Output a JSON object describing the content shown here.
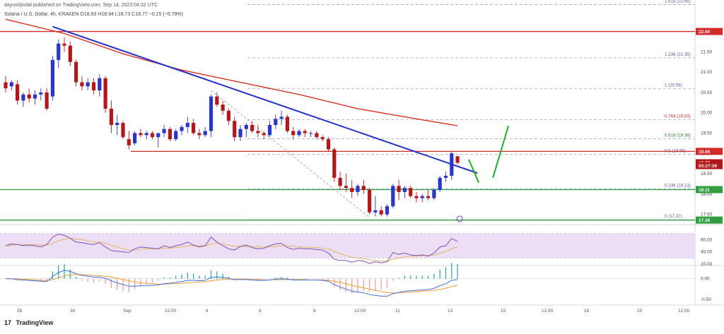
{
  "header": {
    "published_line": "aayushjindal published on TradingView.com, Sep 14, 2023 04:32 UTC",
    "symbol_line": "Solana / U.S. Dollar, 4h, KRAKEN  O18.93  H18.94  L18.73  C18.77  −0.15 (−0.79%)"
  },
  "footer": {
    "brand": "TradingView",
    "logo": "17"
  },
  "colors": {
    "up": "#2b35c8",
    "down": "#b0181c",
    "trendline": "#2230c8",
    "ma": "#d8332a",
    "support": "#2e9e3e",
    "resistance": "#d22a2a",
    "forecast": "#1fb02f",
    "rsi_band": "#ecdff5",
    "rsi_line": "#7e4fb6"
  },
  "chart_data": [
    {
      "type": "candlestick",
      "title": "",
      "xlabel": "",
      "ylabel": "",
      "ylim": [
        17.25,
        22.6
      ],
      "x_ticks": [
        "28",
        "30",
        "Sep",
        "12:00",
        "4",
        "6",
        "8",
        "12:00",
        "11",
        "13",
        "15",
        "12:00",
        "18",
        "20",
        "12:00"
      ],
      "y_ticks": [
        "17.50",
        "18.00",
        "18.50",
        "19.00",
        "19.50",
        "20.00",
        "20.50",
        "21.00",
        "21.50",
        "22.00"
      ],
      "candles": [
        [
          20.75,
          20.9,
          20.5,
          20.6
        ],
        [
          20.65,
          20.8,
          20.55,
          20.75
        ],
        [
          20.7,
          20.8,
          20.2,
          20.3
        ],
        [
          20.3,
          20.5,
          20.15,
          20.45
        ],
        [
          20.45,
          20.6,
          20.25,
          20.35
        ],
        [
          20.35,
          20.55,
          20.2,
          20.45
        ],
        [
          20.45,
          20.6,
          20.3,
          20.5
        ],
        [
          20.5,
          20.6,
          20.05,
          20.1
        ],
        [
          20.4,
          21.4,
          20.3,
          21.3
        ],
        [
          21.3,
          21.8,
          21.1,
          21.7
        ],
        [
          21.7,
          21.85,
          21.5,
          21.65
        ],
        [
          21.65,
          21.75,
          21.15,
          21.25
        ],
        [
          21.25,
          21.3,
          20.65,
          20.75
        ],
        [
          20.75,
          20.9,
          20.55,
          20.65
        ],
        [
          20.65,
          20.85,
          20.55,
          20.75
        ],
        [
          20.75,
          20.85,
          20.45,
          20.55
        ],
        [
          20.55,
          20.95,
          20.4,
          20.85
        ],
        [
          20.85,
          20.9,
          20.0,
          20.1
        ],
        [
          20.1,
          20.3,
          19.5,
          19.7
        ],
        [
          19.7,
          19.95,
          19.45,
          19.75
        ],
        [
          19.75,
          19.8,
          19.35,
          19.4
        ],
        [
          19.35,
          19.55,
          19.1,
          19.2
        ],
        [
          19.25,
          19.55,
          19.2,
          19.5
        ],
        [
          19.5,
          19.6,
          19.4,
          19.45
        ],
        [
          19.45,
          19.55,
          19.35,
          19.5
        ],
        [
          19.5,
          19.55,
          19.35,
          19.4
        ],
        [
          19.4,
          19.5,
          19.15,
          19.5
        ],
        [
          19.5,
          19.7,
          19.4,
          19.6
        ],
        [
          19.6,
          19.65,
          19.3,
          19.35
        ],
        [
          19.35,
          19.6,
          19.3,
          19.55
        ],
        [
          19.55,
          19.7,
          19.45,
          19.65
        ],
        [
          19.65,
          19.9,
          19.5,
          19.75
        ],
        [
          19.75,
          19.85,
          19.45,
          19.5
        ],
        [
          19.5,
          19.6,
          19.35,
          19.45
        ],
        [
          19.45,
          19.65,
          19.4,
          19.55
        ],
        [
          19.55,
          20.45,
          19.4,
          20.4
        ],
        [
          20.4,
          20.5,
          20.15,
          20.2
        ],
        [
          20.2,
          20.3,
          19.95,
          20.05
        ],
        [
          20.05,
          20.1,
          19.7,
          19.8
        ],
        [
          19.8,
          19.9,
          19.3,
          19.4
        ],
        [
          19.4,
          19.7,
          19.3,
          19.6
        ],
        [
          19.6,
          19.75,
          19.4,
          19.7
        ],
        [
          19.7,
          19.8,
          19.5,
          19.55
        ],
        [
          19.55,
          19.7,
          19.4,
          19.5
        ],
        [
          19.5,
          19.55,
          19.35,
          19.45
        ],
        [
          19.45,
          19.8,
          19.4,
          19.7
        ],
        [
          19.7,
          19.95,
          19.6,
          19.85
        ],
        [
          19.85,
          20.05,
          19.7,
          19.9
        ],
        [
          19.9,
          19.95,
          19.5,
          19.55
        ],
        [
          19.55,
          19.65,
          19.35,
          19.45
        ],
        [
          19.45,
          19.6,
          19.4,
          19.55
        ],
        [
          19.55,
          19.6,
          19.4,
          19.5
        ],
        [
          19.5,
          19.55,
          19.4,
          19.5
        ],
        [
          19.5,
          19.55,
          19.35,
          19.4
        ],
        [
          19.4,
          19.45,
          19.3,
          19.35
        ],
        [
          19.35,
          19.4,
          19.05,
          19.1
        ],
        [
          19.1,
          19.15,
          18.3,
          18.4
        ],
        [
          18.4,
          18.55,
          18.1,
          18.2
        ],
        [
          18.2,
          18.5,
          18.05,
          18.15
        ],
        [
          18.15,
          18.35,
          17.9,
          18.05
        ],
        [
          18.05,
          18.25,
          17.95,
          18.2
        ],
        [
          18.2,
          18.35,
          18.0,
          18.1
        ],
        [
          18.1,
          18.15,
          17.5,
          17.55
        ],
        [
          17.55,
          17.95,
          17.45,
          17.6
        ],
        [
          17.6,
          17.7,
          17.45,
          17.5
        ],
        [
          17.5,
          17.75,
          17.45,
          17.7
        ],
        [
          17.7,
          18.25,
          17.65,
          18.2
        ],
        [
          18.2,
          18.35,
          17.85,
          18.05
        ],
        [
          18.05,
          18.2,
          17.9,
          18.15
        ],
        [
          18.15,
          18.2,
          17.9,
          17.95
        ],
        [
          17.95,
          18.05,
          17.8,
          17.9
        ],
        [
          17.9,
          18.0,
          17.8,
          17.95
        ],
        [
          17.95,
          18.1,
          17.85,
          17.9
        ],
        [
          17.9,
          18.15,
          17.85,
          18.1
        ],
        [
          18.1,
          18.45,
          18.05,
          18.4
        ],
        [
          18.4,
          18.55,
          18.3,
          18.45
        ],
        [
          18.45,
          19.05,
          18.35,
          19.0
        ],
        [
          18.93,
          18.94,
          18.73,
          18.77
        ]
      ],
      "moving_average": [
        [
          0,
          22.3
        ],
        [
          10,
          21.95
        ],
        [
          20,
          21.45
        ],
        [
          30,
          21.05
        ],
        [
          40,
          20.75
        ],
        [
          50,
          20.45
        ],
        [
          60,
          20.1
        ],
        [
          70,
          19.85
        ],
        [
          77,
          19.68
        ]
      ],
      "trendline": [
        [
          8,
          22.12
        ],
        [
          77,
          18.62
        ]
      ],
      "horizontal_levels": [
        {
          "label": "22.00",
          "value": 22.0,
          "role": "resistance"
        },
        {
          "label": "19.05",
          "value": 19.05,
          "role": "resistance"
        },
        {
          "label": "18.11",
          "value": 18.11,
          "role": "support"
        },
        {
          "label": "17.36",
          "value": 17.36,
          "role": "support"
        }
      ],
      "fib_levels": [
        {
          "label": "1.618 (22.66)",
          "value": 22.66
        },
        {
          "label": "1.236 (21.35)",
          "value": 21.35
        },
        {
          "label": "1 (20.59)",
          "value": 20.59
        },
        {
          "label": "0.764 (19.83)",
          "value": 19.83
        },
        {
          "label": "0.618 (19.36)",
          "value": 19.36
        },
        {
          "label": "0.5 (18.98)",
          "value": 18.98
        },
        {
          "label": "0.236 (18.13)",
          "value": 18.13
        },
        {
          "label": "0 (17.37)",
          "value": 17.37
        }
      ],
      "price_tags": [
        {
          "label": "22.00",
          "value": 22.0,
          "color": "#d22a2a"
        },
        {
          "label": "19.05",
          "value": 19.05,
          "color": "#d22a2a"
        },
        {
          "label": "18.77",
          "value": 18.77,
          "color": "#b0181c"
        },
        {
          "label": "03:27:39",
          "value": 18.7,
          "color": "#b0181c"
        },
        {
          "label": "18.11",
          "value": 18.11,
          "color": "#2e9e3e"
        },
        {
          "label": "17.36",
          "value": 17.36,
          "color": "#2e9e3e"
        }
      ]
    },
    {
      "type": "line",
      "title": "",
      "ylim": [
        20,
        80
      ],
      "y_ticks": [
        "20.00",
        "40.00",
        "60.00"
      ],
      "band": [
        30,
        70
      ],
      "values": [
        50,
        53,
        52,
        50,
        51,
        50,
        48,
        52,
        64,
        69,
        67,
        62,
        56,
        55,
        53,
        52,
        55,
        48,
        42,
        41,
        40,
        39,
        45,
        48,
        47,
        46,
        45,
        50,
        47,
        50,
        52,
        56,
        51,
        48,
        50,
        64,
        56,
        50,
        45,
        43,
        49,
        51,
        47,
        45,
        46,
        50,
        53,
        54,
        47,
        44,
        46,
        45,
        45,
        44,
        43,
        38,
        28,
        26,
        26,
        23,
        26,
        25,
        21,
        24,
        22,
        24,
        39,
        36,
        38,
        35,
        34,
        35,
        33,
        38,
        48,
        50,
        62,
        57
      ],
      "signal": [
        50,
        51,
        52,
        52,
        52,
        52,
        51,
        51,
        54,
        58,
        61,
        62,
        61,
        60,
        58,
        56,
        56,
        54,
        51,
        48,
        45,
        43,
        43,
        44,
        45,
        45,
        45,
        46,
        46,
        47,
        48,
        50,
        50,
        50,
        50,
        53,
        54,
        53,
        51,
        49,
        49,
        49,
        49,
        48,
        48,
        48,
        49,
        50,
        50,
        49,
        48,
        48,
        47,
        47,
        46,
        45,
        41,
        37,
        34,
        31,
        30,
        29,
        27,
        26,
        25,
        25,
        28,
        30,
        32,
        33,
        33,
        34,
        34,
        35,
        38,
        41,
        45,
        48
      ]
    },
    {
      "type": "line",
      "title": "",
      "ylim": [
        -0.6,
        0.25
      ],
      "y_ticks": [
        "0.00",
        "-0.50"
      ],
      "macd": [
        0.0,
        0.0,
        -0.02,
        -0.03,
        -0.04,
        -0.05,
        -0.06,
        -0.07,
        0.05,
        0.15,
        0.2,
        0.18,
        0.12,
        0.08,
        0.06,
        0.04,
        0.04,
        0.01,
        -0.05,
        -0.1,
        -0.14,
        -0.18,
        -0.18,
        -0.17,
        -0.16,
        -0.16,
        -0.15,
        -0.12,
        -0.11,
        -0.09,
        -0.07,
        -0.04,
        -0.04,
        -0.05,
        -0.04,
        0.03,
        0.04,
        0.03,
        0.01,
        -0.02,
        -0.02,
        -0.02,
        -0.03,
        -0.04,
        -0.04,
        -0.03,
        -0.01,
        0.0,
        -0.01,
        -0.03,
        -0.03,
        -0.03,
        -0.03,
        -0.03,
        -0.04,
        -0.06,
        -0.14,
        -0.2,
        -0.25,
        -0.3,
        -0.32,
        -0.34,
        -0.38,
        -0.4,
        -0.42,
        -0.42,
        -0.36,
        -0.33,
        -0.3,
        -0.29,
        -0.28,
        -0.27,
        -0.26,
        -0.23,
        -0.17,
        -0.12,
        -0.04,
        -0.02
      ],
      "signal": [
        0.0,
        0.0,
        0.0,
        -0.01,
        -0.02,
        -0.03,
        -0.04,
        -0.05,
        -0.02,
        0.02,
        0.06,
        0.09,
        0.1,
        0.1,
        0.09,
        0.08,
        0.07,
        0.06,
        0.04,
        0.01,
        -0.02,
        -0.05,
        -0.08,
        -0.1,
        -0.11,
        -0.12,
        -0.13,
        -0.13,
        -0.12,
        -0.12,
        -0.11,
        -0.1,
        -0.09,
        -0.08,
        -0.07,
        -0.05,
        -0.03,
        -0.02,
        -0.01,
        -0.01,
        -0.01,
        -0.01,
        -0.02,
        -0.02,
        -0.03,
        -0.03,
        -0.02,
        -0.02,
        -0.02,
        -0.02,
        -0.02,
        -0.02,
        -0.03,
        -0.03,
        -0.03,
        -0.04,
        -0.06,
        -0.09,
        -0.12,
        -0.16,
        -0.19,
        -0.22,
        -0.25,
        -0.28,
        -0.31,
        -0.33,
        -0.34,
        -0.34,
        -0.33,
        -0.32,
        -0.31,
        -0.3,
        -0.29,
        -0.28,
        -0.26,
        -0.23,
        -0.19,
        -0.16
      ]
    }
  ]
}
